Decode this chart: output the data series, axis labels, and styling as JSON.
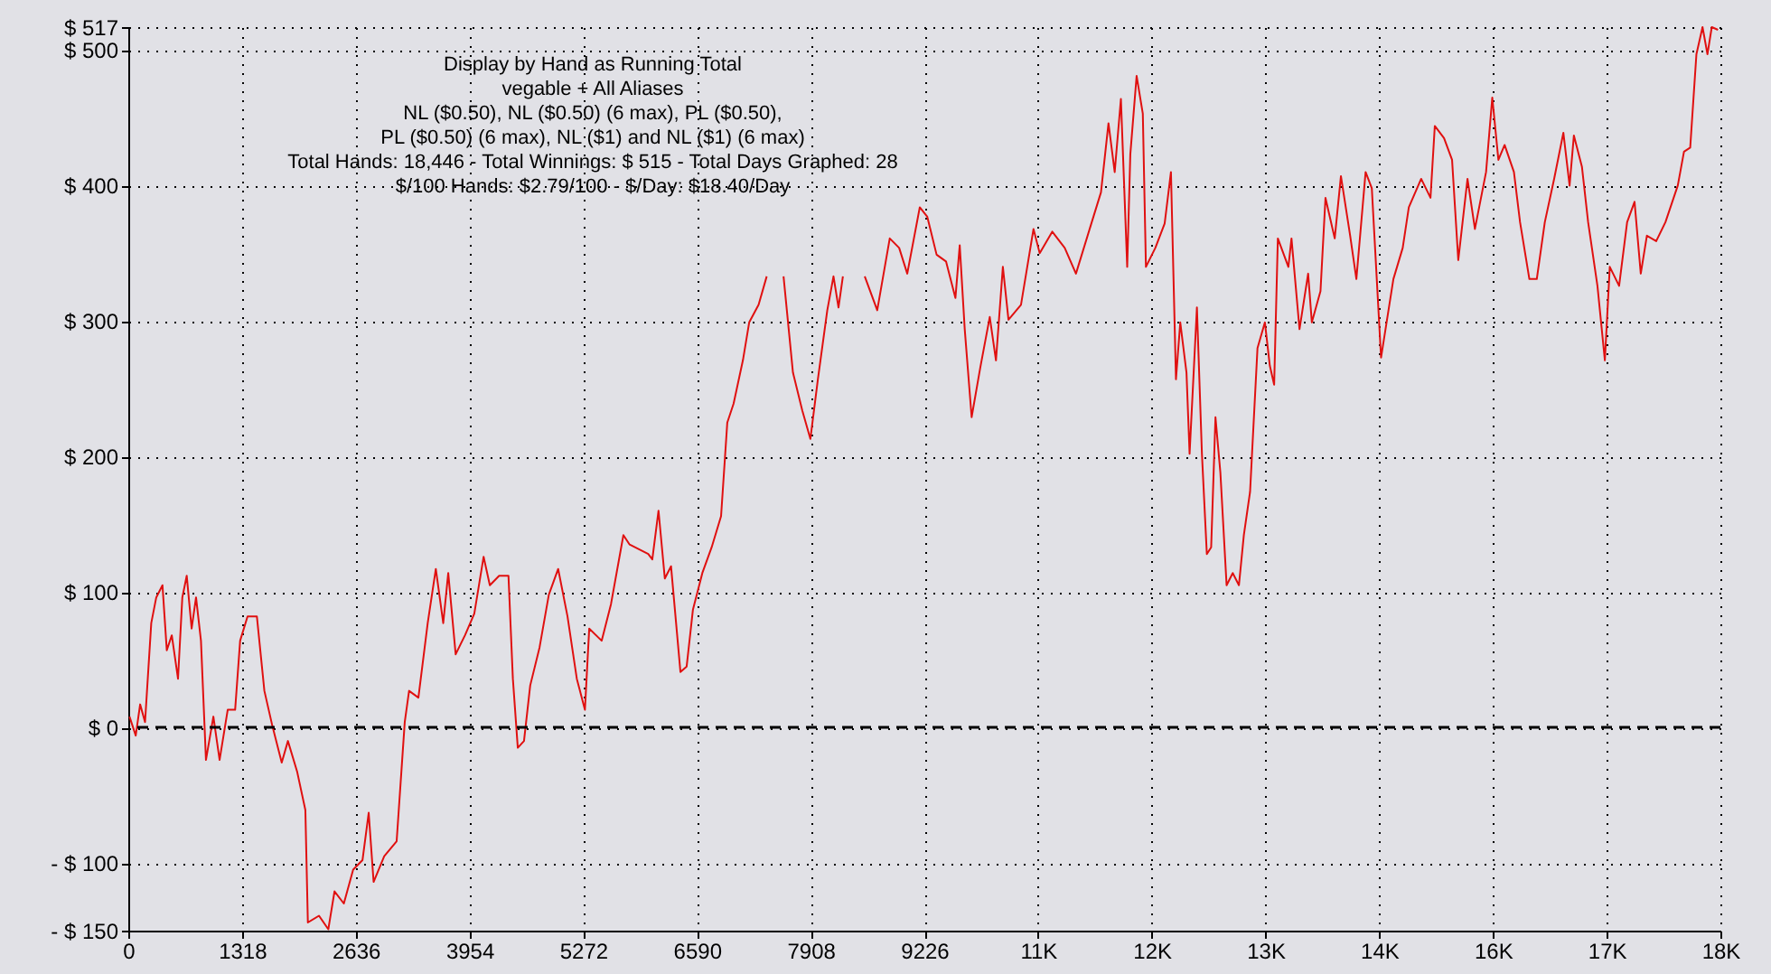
{
  "chart_data": {
    "type": "line",
    "title": "Display by Hand as Running Total",
    "subtitle": "vegable + All Aliases\nNL ($0.50), NL ($0.50) (6 max), PL ($0.50),\nPL ($0.50) (6 max), NL ($1) and NL ($1) (6 max)\nTotal Hands: 18,446 - Total Winnings: $ 515 - Total Days Graphed: 28\n$/100 Hands: $2.79/100 - $/Day: $18.40/Day",
    "xlim": [
      0,
      18452
    ],
    "ylim": [
      -150,
      517
    ],
    "xticks": [
      0,
      1318,
      2636,
      3954,
      5272,
      6590,
      7908,
      9226,
      {
        "value": 10544,
        "label": "11K"
      },
      {
        "value": 11862,
        "label": "12K"
      },
      {
        "value": 13180,
        "label": "13K"
      },
      {
        "value": 14498,
        "label": "14K"
      },
      {
        "value": 15816,
        "label": "16K"
      },
      {
        "value": 17134,
        "label": "17K"
      },
      {
        "value": 18452,
        "label": "18K"
      }
    ],
    "yticks": [
      {
        "value": -150,
        "label": "- $ 150"
      },
      {
        "value": -100,
        "label": "- $ 100"
      },
      {
        "value": 0,
        "label": "$ 0"
      },
      {
        "value": 100,
        "label": "$ 100"
      },
      {
        "value": 200,
        "label": "$ 200"
      },
      {
        "value": 300,
        "label": "$ 300"
      },
      {
        "value": 400,
        "label": "$ 400"
      },
      {
        "value": 500,
        "label": "$ 500"
      },
      {
        "value": 517,
        "label": "$ 517"
      }
    ],
    "grid": true,
    "marker": "none",
    "line_style": "solid",
    "ref_lines": [
      {
        "axis": "y",
        "value": 0,
        "color": "#000000",
        "line_style": "dashed"
      }
    ],
    "series": [
      {
        "color": "#e01010",
        "x": [
          14,
          86,
          137,
          194,
          266,
          324,
          396,
          446,
          504,
          576,
          626,
          677,
          734,
          785,
          842,
          900,
          986,
          1058,
          1152,
          1238,
          1296,
          1382,
          1490,
          1577,
          1670,
          1778,
          1850,
          1958,
          2052,
          2081,
          2210,
          2318,
          2390,
          2498,
          2606,
          2714,
          2786,
          2843,
          2966,
          3110,
          3204,
          3254,
          3362,
          3470,
          3564,
          3650,
          3708,
          3794,
          3902,
          4010,
          4118,
          4190,
          4298,
          4406,
          4457,
          4514,
          4586,
          4658,
          4766,
          4874,
          4982,
          5090,
          5198,
          5292,
          5342,
          5486,
          5594,
          5738,
          5810,
          6026,
          6073,
          6145,
          6218,
          6290,
          6399,
          6471,
          6544,
          6653,
          6761,
          6870,
          6942,
          7015,
          7123,
          7196,
          7305,
          7399,
          7500,
          7594,
          7703,
          7811,
          7905,
          7992,
          8101,
          8173,
          8231,
          8282,
          8400,
          8535,
          8680,
          8825,
          8934,
          9028,
          9173,
          9260,
          9368,
          9477,
          9586,
          9636,
          9694,
          9774,
          9875,
          9984,
          10056,
          10136,
          10201,
          10346,
          10491,
          10563,
          10708,
          10853,
          10983,
          11142,
          11273,
          11360,
          11432,
          11504,
          11577,
          11613,
          11686,
          11758,
          11794,
          11903,
          12011,
          12084,
          12142,
          12192,
          12264,
          12300,
          12385,
          12443,
          12500,
          12550,
          12600,
          12657,
          12729,
          12800,
          12872,
          12929,
          13001,
          13087,
          13173,
          13230,
          13280,
          13323,
          13445,
          13481,
          13574,
          13674,
          13717,
          13817,
          13875,
          13982,
          14054,
          14161,
          14233,
          14340,
          14412,
          14519,
          14662,
          14770,
          14841,
          14984,
          15092,
          15142,
          15249,
          15342,
          15414,
          15521,
          15607,
          15736,
          15808,
          15879,
          15951,
          16059,
          16130,
          16238,
          16324,
          16417,
          16525,
          16632,
          16704,
          16754,
          16847,
          16919,
          17027,
          17113,
          17170,
          17278,
          17371,
          17457,
          17529,
          17600,
          17708,
          17815,
          17958,
          18030,
          18102,
          18174,
          18245,
          18302,
          18352,
          18424
        ],
        "values": [
          8,
          -6,
          17,
          4,
          77,
          96,
          105,
          57,
          68,
          36,
          96,
          112,
          73,
          96,
          64,
          -24,
          8,
          -24,
          13,
          13,
          64,
          82,
          82,
          27,
          1,
          -26,
          -10,
          -33,
          -61,
          -144,
          -139,
          -149,
          -121,
          -130,
          -105,
          -98,
          -63,
          -114,
          -95,
          -84,
          4,
          27,
          22,
          77,
          117,
          77,
          114,
          54,
          68,
          84,
          126,
          105,
          112,
          112,
          36,
          -15,
          -10,
          31,
          59,
          98,
          117,
          82,
          36,
          13,
          73,
          64,
          91,
          142,
          135,
          128,
          124,
          160,
          110,
          119,
          41,
          45,
          87,
          114,
          133,
          156,
          225,
          239,
          271,
          299,
          312,
          333,
          null,
          333,
          262,
          234,
          213,
          257,
          308,
          333,
          310,
          333,
          null,
          333,
          308,
          361,
          354,
          335,
          384,
          377,
          349,
          344,
          317,
          356,
          294,
          229,
          266,
          303,
          271,
          340,
          301,
          312,
          368,
          350,
          366,
          354,
          335,
          368,
          395,
          446,
          410,
          464,
          340,
          423,
          481,
          453,
          340,
          354,
          372,
          410,
          257,
          299,
          262,
          202,
          310,
          202,
          128,
          133,
          229,
          188,
          105,
          114,
          105,
          142,
          174,
          280,
          299,
          267,
          253,
          361,
          340,
          361,
          294,
          335,
          299,
          322,
          391,
          361,
          407,
          363,
          331,
          410,
          398,
          273,
          331,
          354,
          384,
          405,
          391,
          444,
          435,
          419,
          345,
          405,
          368,
          410,
          465,
          419,
          430,
          410,
          373,
          331,
          331,
          373,
          405,
          439,
          400,
          437,
          414,
          373,
          326,
          271,
          340,
          326,
          373,
          388,
          335,
          363,
          359,
          373,
          400,
          425,
          428,
          497,
          517,
          497,
          517,
          515
        ]
      }
    ]
  }
}
